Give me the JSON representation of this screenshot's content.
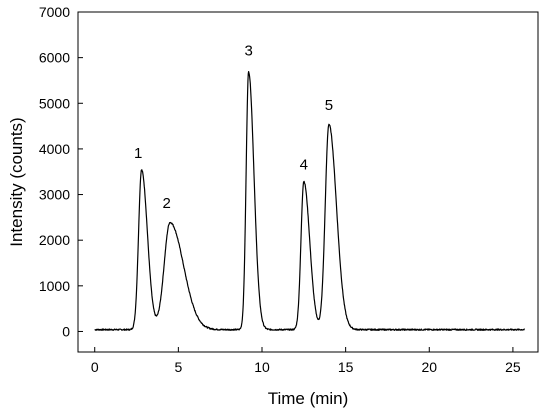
{
  "chart_data": {
    "type": "line",
    "title": "",
    "xlabel": "Time (min)",
    "ylabel": "Intensity (counts)",
    "xlim": [
      -1,
      26.5
    ],
    "ylim": [
      -450,
      7000
    ],
    "xticks": [
      0,
      5,
      10,
      15,
      20,
      25
    ],
    "yticks": [
      0,
      1000,
      2000,
      3000,
      4000,
      5000,
      6000,
      7000
    ],
    "grid": false,
    "legend": "none",
    "line_color": "#000000",
    "baseline": 40,
    "series": [
      {
        "name": "",
        "peaks": [
          {
            "label": "1",
            "time": 2.8,
            "height": 3500,
            "rise_width": 0.18,
            "tail_width": 0.35
          },
          {
            "label": "2",
            "time": 4.5,
            "height": 2350,
            "rise_width": 0.35,
            "tail_width": 0.8
          },
          {
            "label": "3",
            "time": 9.2,
            "height": 5650,
            "rise_width": 0.15,
            "tail_width": 0.32
          },
          {
            "label": "4",
            "time": 12.5,
            "height": 3250,
            "rise_width": 0.17,
            "tail_width": 0.35
          },
          {
            "label": "5",
            "time": 14.0,
            "height": 4500,
            "rise_width": 0.22,
            "tail_width": 0.45
          }
        ]
      }
    ],
    "annotations": [
      {
        "text": "1",
        "x": 2.6,
        "y": 3800
      },
      {
        "text": "2",
        "x": 4.3,
        "y": 2700
      },
      {
        "text": "3",
        "x": 9.2,
        "y": 6050
      },
      {
        "text": "4",
        "x": 12.5,
        "y": 3550
      },
      {
        "text": "5",
        "x": 14.0,
        "y": 4850
      }
    ]
  }
}
